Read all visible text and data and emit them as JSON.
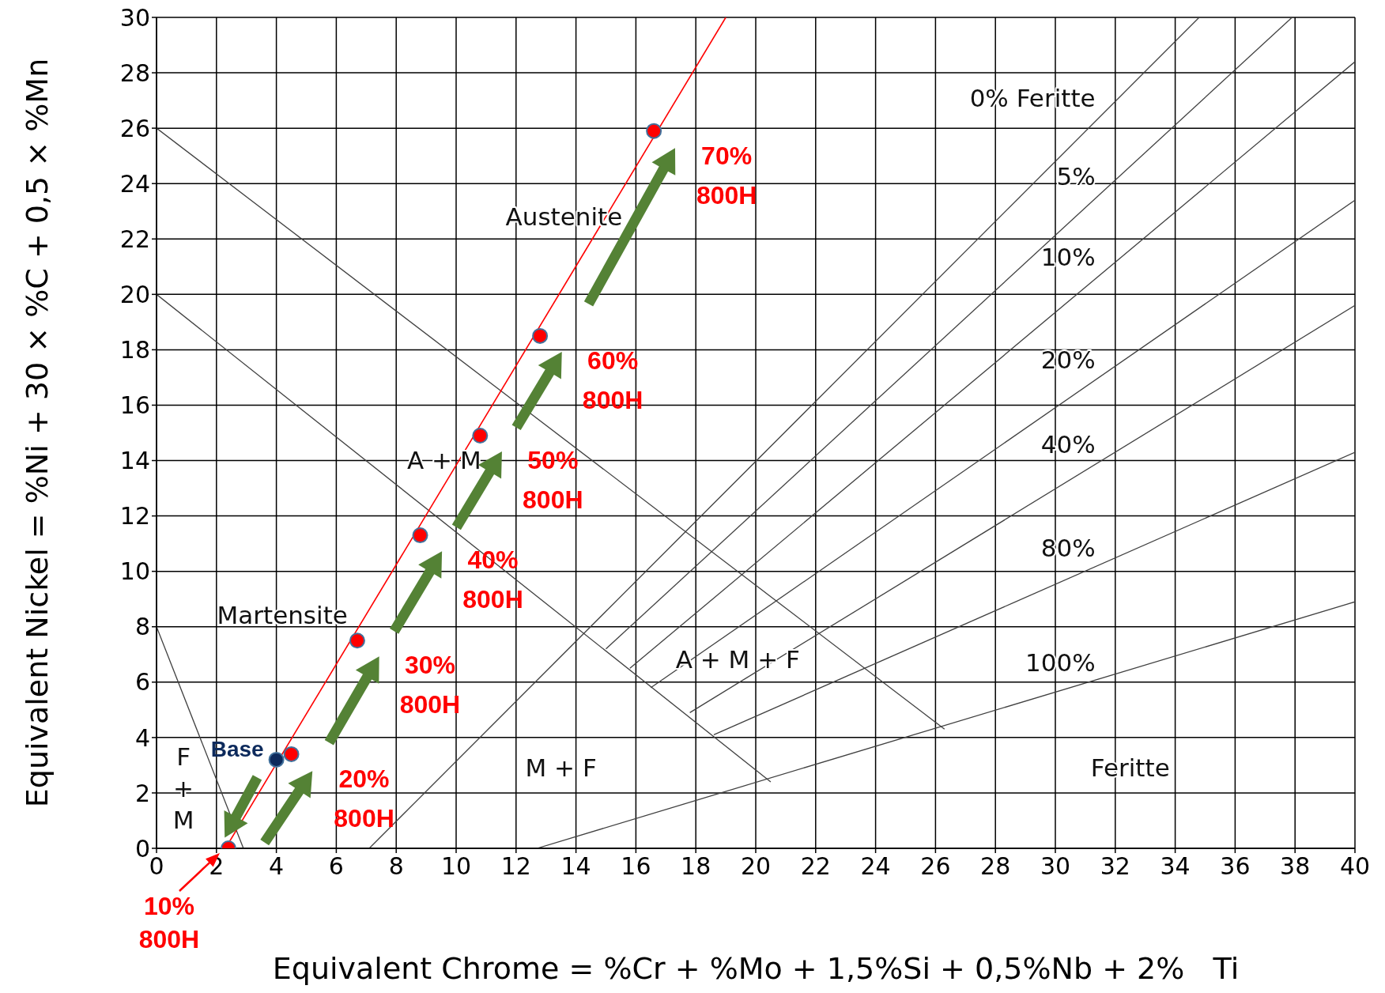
{
  "chart_data": {
    "type": "scatter",
    "xlabel": "Equivalent Chrome = %Cr + %Mo + 1,5%Si + 0,5%Nb + 2%   Ti",
    "ylabel": "Equivalent Nickel = %Ni + 30 × %C + 0,5 × %Mn",
    "xlim": [
      0,
      40
    ],
    "ylim": [
      0,
      30
    ],
    "xticks": [
      0,
      2,
      4,
      6,
      8,
      10,
      12,
      14,
      16,
      18,
      20,
      22,
      24,
      26,
      28,
      30,
      32,
      34,
      36,
      38,
      40
    ],
    "yticks": [
      0,
      2,
      4,
      6,
      8,
      10,
      12,
      14,
      16,
      18,
      20,
      22,
      24,
      26,
      28,
      30
    ],
    "grid": true,
    "line_style": "solid",
    "series": [
      {
        "type": "line",
        "color": "#404040",
        "x": [
          0,
          2.9
        ],
        "values": [
          8,
          0
        ]
      },
      {
        "type": "line",
        "color": "#404040",
        "x": [
          0,
          20.5
        ],
        "values": [
          20,
          2.4
        ]
      },
      {
        "type": "line",
        "color": "#404040",
        "x": [
          0,
          26.3
        ],
        "values": [
          26,
          4.3
        ]
      },
      {
        "type": "line",
        "name": "0% Feritte",
        "color": "#404040",
        "x": [
          7.1,
          34.8
        ],
        "values": [
          0,
          30
        ]
      },
      {
        "type": "line",
        "name": "5%",
        "color": "#404040",
        "x": [
          15,
          37.9
        ],
        "values": [
          7.2,
          30
        ]
      },
      {
        "type": "line",
        "name": "10%",
        "color": "#404040",
        "x": [
          15.8,
          40
        ],
        "values": [
          6.5,
          28.4
        ]
      },
      {
        "type": "line",
        "name": "20%",
        "color": "#404040",
        "x": [
          16.5,
          40
        ],
        "values": [
          5.8,
          23.4
        ]
      },
      {
        "type": "line",
        "name": "40%",
        "color": "#404040",
        "x": [
          17.8,
          40
        ],
        "values": [
          4.9,
          19.6
        ]
      },
      {
        "type": "line",
        "name": "80%",
        "color": "#404040",
        "x": [
          18.6,
          40
        ],
        "values": [
          4.1,
          14.3
        ]
      },
      {
        "type": "line",
        "name": "100%",
        "color": "#404040",
        "x": [
          12.7,
          40
        ],
        "values": [
          0,
          8.9
        ]
      },
      {
        "type": "line",
        "color": "#ff0000",
        "x": [
          2.3,
          19
        ],
        "values": [
          0,
          30
        ]
      },
      {
        "name": "Base",
        "marker": "circle",
        "color": "#0d2a5c",
        "x": [
          4
        ],
        "values": [
          3.2
        ]
      },
      {
        "marker": "circle",
        "color": "#ff0000",
        "x": [
          2.4,
          4.5,
          6.7,
          8.8,
          10.8,
          12.8,
          16.6
        ],
        "values": [
          0,
          3.4,
          7.5,
          11.3,
          14.9,
          18.5,
          25.9
        ],
        "value_labels": [
          "10%\n800H",
          "20%\n800H",
          "30%\n800H",
          "40%\n800H",
          "50%\n800H",
          "60%\n800H",
          "70%\n800H"
        ]
      }
    ],
    "annotations": [
      "Austenite",
      "A + M",
      "Martensite",
      "A + M + F",
      "M + F",
      "Feritte",
      "F\n+\nM"
    ]
  }
}
